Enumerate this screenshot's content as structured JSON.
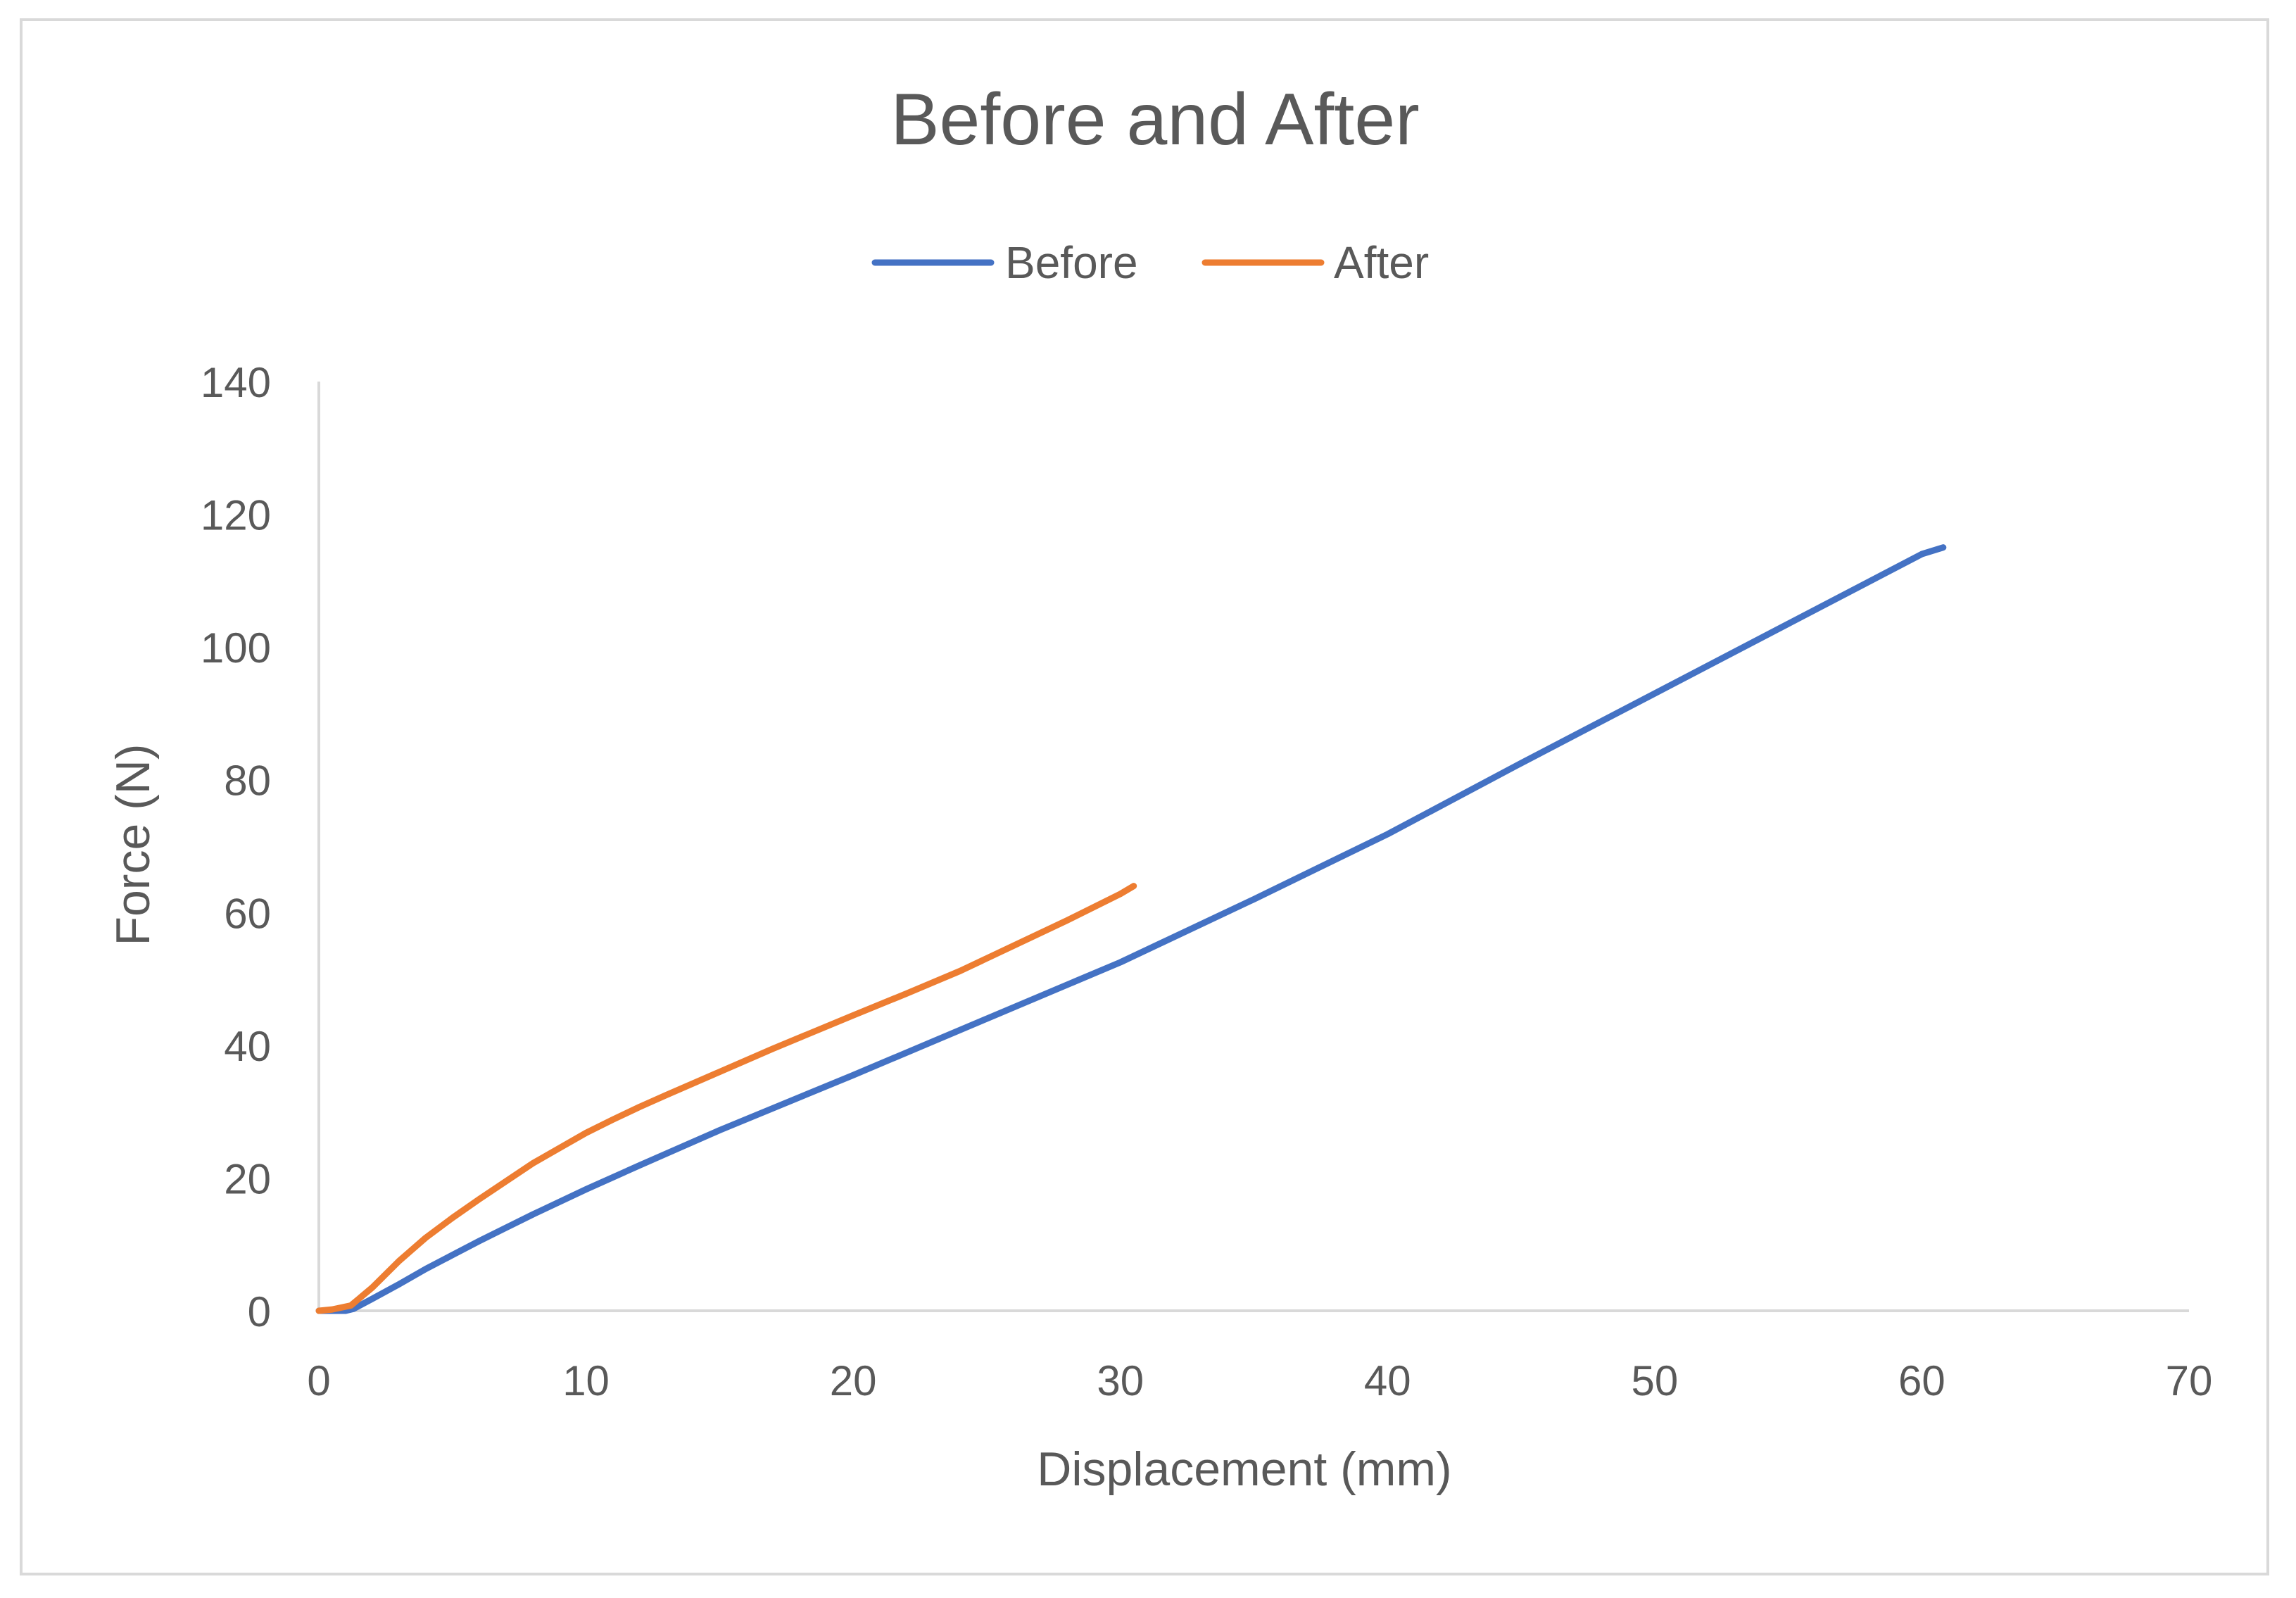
{
  "chart_data": {
    "type": "line",
    "title": "Before and After",
    "xlabel": "Displacement (mm)",
    "ylabel": "Force (N)",
    "xlim": [
      0,
      70
    ],
    "ylim": [
      0,
      140
    ],
    "xticks": [
      0,
      10,
      20,
      30,
      40,
      50,
      60,
      70
    ],
    "yticks": [
      0,
      20,
      40,
      60,
      80,
      100,
      120,
      140
    ],
    "grid": false,
    "legend_position": "top-center",
    "series": [
      {
        "name": "Before",
        "color": "#4472c4",
        "points": [
          [
            0,
            0
          ],
          [
            1,
            0
          ],
          [
            1.3,
            0.3
          ],
          [
            2,
            1.8
          ],
          [
            3,
            4.0
          ],
          [
            4,
            6.3
          ],
          [
            5,
            8.4
          ],
          [
            6,
            10.5
          ],
          [
            7,
            12.5
          ],
          [
            8,
            14.5
          ],
          [
            10,
            18.3
          ],
          [
            12,
            21.9
          ],
          [
            15,
            27.2
          ],
          [
            20,
            35.5
          ],
          [
            25,
            44.0
          ],
          [
            30,
            52.5
          ],
          [
            35,
            62.0
          ],
          [
            40,
            71.8
          ],
          [
            45,
            82.5
          ],
          [
            50,
            93.0
          ],
          [
            55,
            103.5
          ],
          [
            60,
            114.0
          ],
          [
            60.8,
            115.0
          ]
        ]
      },
      {
        "name": "After",
        "color": "#ed7d31",
        "points": [
          [
            0,
            0
          ],
          [
            0.5,
            0.2
          ],
          [
            1.2,
            0.8
          ],
          [
            2,
            3.5
          ],
          [
            3,
            7.5
          ],
          [
            4,
            11.0
          ],
          [
            5,
            14.0
          ],
          [
            6,
            16.8
          ],
          [
            7,
            19.5
          ],
          [
            8,
            22.2
          ],
          [
            9,
            24.5
          ],
          [
            10,
            26.8
          ],
          [
            11,
            28.8
          ],
          [
            12,
            30.7
          ],
          [
            13,
            32.5
          ],
          [
            15,
            36.0
          ],
          [
            17,
            39.5
          ],
          [
            20,
            44.5
          ],
          [
            22,
            47.8
          ],
          [
            24,
            51.2
          ],
          [
            26,
            55.0
          ],
          [
            28,
            58.8
          ],
          [
            30,
            62.8
          ],
          [
            30.5,
            64.0
          ]
        ]
      }
    ]
  }
}
